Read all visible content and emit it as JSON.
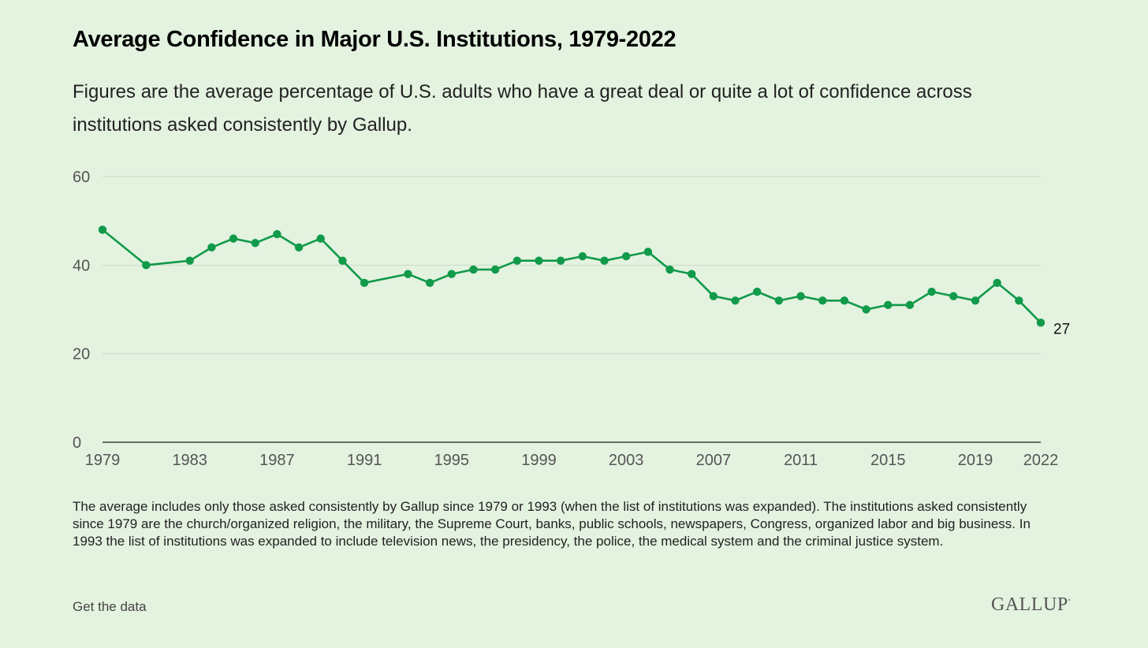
{
  "title": "Average Confidence in Major U.S. Institutions, 1979-2022",
  "subtitle": "Figures are the average percentage of U.S. adults who have a great deal or quite a lot of confidence across institutions asked consistently by Gallup.",
  "note": "The average includes only those asked consistently by Gallup since 1979 or 1993 (when the list of institutions was expanded). The institutions asked consistently since 1979 are the church/organized religion, the military, the Supreme Court, banks, public schools, newspapers, Congress, organized labor and big business. In 1993 the list of institutions was expanded to include television news, the presidency, the police, the medical system and the criminal justice system.",
  "get_data_label": "Get the data",
  "logo_text": "GALLUP",
  "colors": {
    "line": "#109a4a",
    "grid": "#c9d9c6",
    "axis": "#1a1a1a"
  },
  "chart_data": {
    "type": "line",
    "x": [
      1979,
      1981,
      1983,
      1984,
      1985,
      1986,
      1987,
      1988,
      1989,
      1990,
      1991,
      1993,
      1994,
      1995,
      1996,
      1997,
      1998,
      1999,
      2000,
      2001,
      2002,
      2003,
      2004,
      2005,
      2006,
      2007,
      2008,
      2009,
      2010,
      2011,
      2012,
      2013,
      2014,
      2015,
      2016,
      2017,
      2018,
      2019,
      2020,
      2021,
      2022
    ],
    "values": [
      48,
      40,
      41,
      44,
      46,
      45,
      47,
      44,
      46,
      41,
      36,
      38,
      36,
      38,
      39,
      39,
      41,
      41,
      41,
      42,
      41,
      42,
      43,
      39,
      38,
      33,
      32,
      34,
      32,
      33,
      32,
      32,
      30,
      31,
      31,
      34,
      33,
      32,
      36,
      32,
      27
    ],
    "x_ticks": [
      "1979",
      "1983",
      "1987",
      "1991",
      "1995",
      "1999",
      "2003",
      "2007",
      "2011",
      "2015",
      "2019",
      "2022"
    ],
    "y_ticks": [
      "0",
      "20",
      "40",
      "60"
    ],
    "ylim": [
      0,
      60
    ],
    "xlim": [
      1979,
      2022
    ],
    "end_label": "27",
    "grid": true
  }
}
